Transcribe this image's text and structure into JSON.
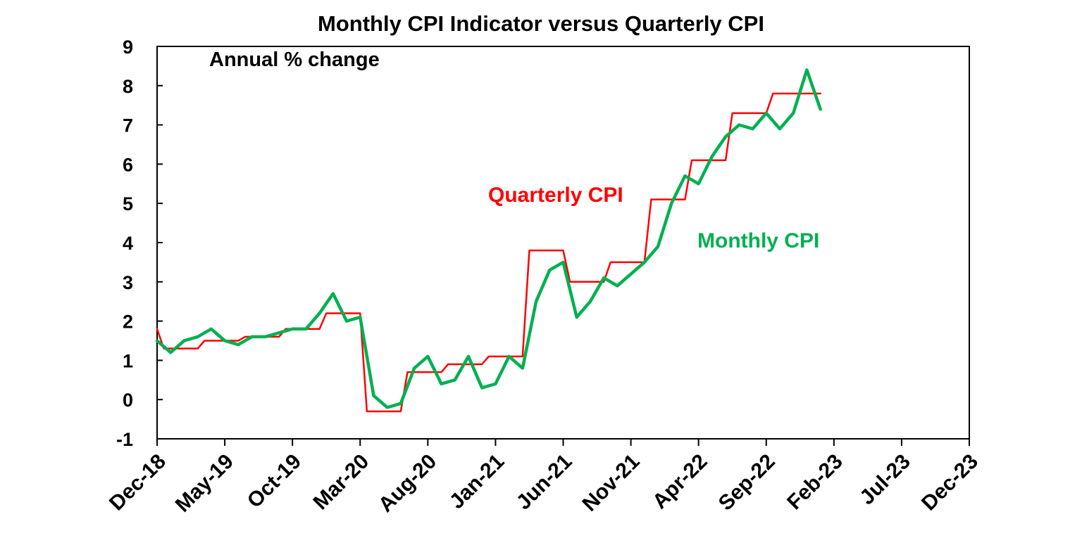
{
  "chart_data": {
    "type": "line",
    "title": "Monthly CPI Indicator versus Quarterly CPI",
    "subtitle": "Annual % change",
    "ylim": [
      -1,
      9
    ],
    "yticks": [
      "-1",
      "0",
      "1",
      "2",
      "3",
      "4",
      "5",
      "6",
      "7",
      "8",
      "9"
    ],
    "xlim": [
      "Dec-18",
      "Dec-23"
    ],
    "xticks": [
      "Dec-18",
      "May-19",
      "Oct-19",
      "Mar-20",
      "Aug-20",
      "Jan-21",
      "Jun-21",
      "Nov-21",
      "Apr-22",
      "Sep-22",
      "Feb-23",
      "Jul-23",
      "Dec-23"
    ],
    "grid": false,
    "series": [
      {
        "name": "Quarterly CPI",
        "color": "#ff0000",
        "x": [
          "Dec-18",
          "Jan-19",
          "Feb-19",
          "Mar-19",
          "Apr-19",
          "May-19",
          "Jun-19",
          "Jul-19",
          "Aug-19",
          "Sep-19",
          "Oct-19",
          "Nov-19",
          "Dec-19",
          "Jan-20",
          "Feb-20",
          "Mar-20",
          "Apr-20",
          "May-20",
          "Jun-20",
          "Jul-20",
          "Aug-20",
          "Sep-20",
          "Oct-20",
          "Nov-20",
          "Dec-20",
          "Jan-21",
          "Feb-21",
          "Mar-21",
          "Apr-21",
          "May-21",
          "Jun-21",
          "Jul-21",
          "Aug-21",
          "Sep-21",
          "Oct-21",
          "Nov-21",
          "Dec-21",
          "Jan-22",
          "Feb-22",
          "Mar-22",
          "Apr-22",
          "May-22",
          "Jun-22",
          "Jul-22",
          "Aug-22",
          "Sep-22",
          "Oct-22",
          "Nov-22",
          "Dec-22",
          "Jan-23"
        ],
        "values": [
          1.8,
          1.3,
          1.3,
          1.3,
          1.5,
          1.5,
          1.5,
          1.6,
          1.6,
          1.6,
          1.8,
          1.8,
          1.8,
          2.2,
          2.2,
          2.2,
          -0.3,
          -0.3,
          -0.3,
          0.7,
          0.7,
          0.7,
          0.9,
          0.9,
          0.9,
          1.1,
          1.1,
          1.1,
          3.8,
          3.8,
          3.8,
          3.0,
          3.0,
          3.0,
          3.5,
          3.5,
          3.5,
          5.1,
          5.1,
          5.1,
          6.1,
          6.1,
          6.1,
          7.3,
          7.3,
          7.3,
          7.8,
          7.8,
          7.8,
          7.8
        ]
      },
      {
        "name": "Monthly CPI",
        "color": "#00b050",
        "x": [
          "Dec-18",
          "Jan-19",
          "Feb-19",
          "Mar-19",
          "Apr-19",
          "May-19",
          "Jun-19",
          "Jul-19",
          "Aug-19",
          "Sep-19",
          "Oct-19",
          "Nov-19",
          "Dec-19",
          "Jan-20",
          "Feb-20",
          "Mar-20",
          "Apr-20",
          "May-20",
          "Jun-20",
          "Jul-20",
          "Aug-20",
          "Sep-20",
          "Oct-20",
          "Nov-20",
          "Dec-20",
          "Jan-21",
          "Feb-21",
          "Mar-21",
          "Apr-21",
          "May-21",
          "Jun-21",
          "Jul-21",
          "Aug-21",
          "Sep-21",
          "Oct-21",
          "Nov-21",
          "Dec-21",
          "Jan-22",
          "Feb-22",
          "Mar-22",
          "Apr-22",
          "May-22",
          "Jun-22",
          "Jul-22",
          "Aug-22",
          "Sep-22",
          "Oct-22",
          "Nov-22",
          "Dec-22",
          "Jan-23"
        ],
        "values": [
          1.5,
          1.2,
          1.5,
          1.6,
          1.8,
          1.5,
          1.4,
          1.6,
          1.6,
          1.7,
          1.8,
          1.8,
          2.2,
          2.7,
          2.0,
          2.1,
          0.1,
          -0.2,
          -0.1,
          0.8,
          1.1,
          0.4,
          0.5,
          1.1,
          0.3,
          0.4,
          1.1,
          0.8,
          2.5,
          3.3,
          3.5,
          2.1,
          2.5,
          3.1,
          2.9,
          3.2,
          3.5,
          3.9,
          5.0,
          5.7,
          5.5,
          6.2,
          6.7,
          7.0,
          6.9,
          7.3,
          6.9,
          7.3,
          8.4,
          7.4
        ]
      }
    ],
    "annotations": [
      {
        "text": "Quarterly CPI",
        "color": "#ff0000"
      },
      {
        "text": "Monthly CPI",
        "color": "#00b050"
      }
    ]
  }
}
